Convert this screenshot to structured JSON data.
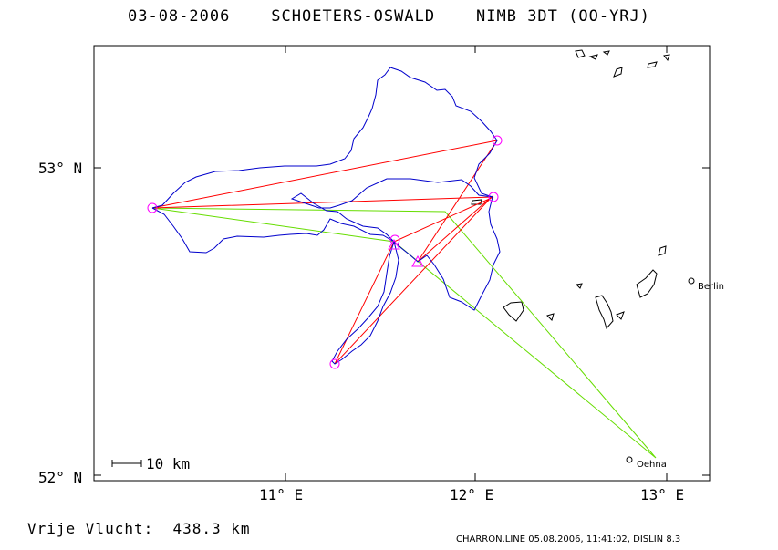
{
  "header": {
    "date": "03-08-2006",
    "pilots": "SCHOETERS-OSWALD",
    "aircraft": "NIMB 3DT (OO-YRJ)"
  },
  "axes": {
    "y_labels": [
      "53° N",
      "52° N"
    ],
    "x_labels": [
      "11° E",
      "12° E",
      "13° E"
    ]
  },
  "scale_bar": {
    "label": "10 km"
  },
  "cities": [
    {
      "name": "Berlin"
    },
    {
      "name": "Oehna"
    }
  ],
  "colors": {
    "track": "#0000cc",
    "task_legs": "#ff0000",
    "free_flight": "#66dd00",
    "turnpoints": "#ff00ff",
    "frame": "#000000"
  },
  "summary": {
    "distance_label": "Vrije Vlucht:  438.3 km"
  },
  "footer": {
    "text": "CHARRON.LINE 05.08.2006, 11:41:02, DISLIN 8.3"
  }
}
